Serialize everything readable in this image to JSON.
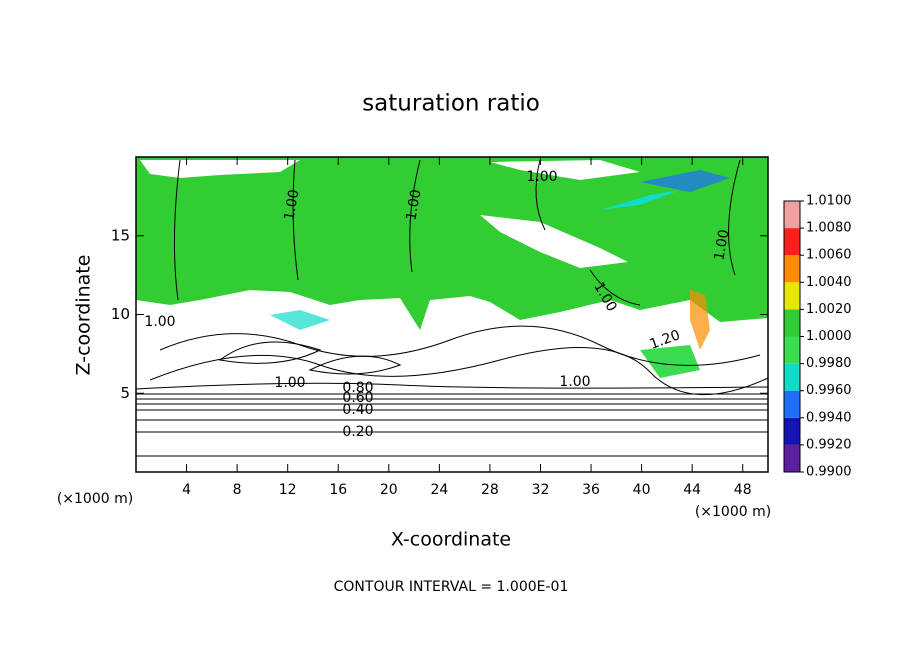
{
  "chart_data": {
    "type": "contour",
    "title": "saturation ratio",
    "x_label": "X-coordinate",
    "y_label": "Z-coordinate",
    "x_unit": "(×1000 m)",
    "footer": "CONTOUR INTERVAL = 1.000E-01",
    "xlim": [
      0,
      50
    ],
    "xticks": [
      4,
      8,
      12,
      16,
      20,
      24,
      28,
      32,
      36,
      40,
      44,
      48
    ],
    "ylim": [
      0,
      20
    ],
    "yticks": [
      5,
      10,
      15
    ],
    "colorbar": {
      "ticks": [
        {
          "value": 0.99,
          "label": "0.9900"
        },
        {
          "value": 0.992,
          "label": "0.9920"
        },
        {
          "value": 0.994,
          "label": "0.9940"
        },
        {
          "value": 0.996,
          "label": "0.9960"
        },
        {
          "value": 0.998,
          "label": "0.9980"
        },
        {
          "value": 1.0,
          "label": "1.0000"
        },
        {
          "value": 1.002,
          "label": "1.0020"
        },
        {
          "value": 1.004,
          "label": "1.0040"
        },
        {
          "value": 1.006,
          "label": "1.0060"
        },
        {
          "value": 1.008,
          "label": "1.0080"
        },
        {
          "value": 1.01,
          "label": "1.0100"
        }
      ],
      "colors": [
        "#5a1e9e",
        "#1414b4",
        "#1e6eff",
        "#10dcc8",
        "#3cdc50",
        "#32cd32",
        "#e6e600",
        "#ff8c00",
        "#ff1e1e",
        "#f0a0a0"
      ]
    },
    "contour_labels": [
      {
        "value": 1.0,
        "label": "1.00"
      },
      {
        "value": 1.0,
        "label": "1.00"
      },
      {
        "value": 1.0,
        "label": "1.00"
      },
      {
        "value": 1.0,
        "label": "1.00"
      },
      {
        "value": 1.0,
        "label": "1.00"
      },
      {
        "value": 1.0,
        "label": "1.00"
      },
      {
        "value": 1.0,
        "label": "1.00"
      },
      {
        "value": 1.0,
        "label": "1.00"
      },
      {
        "value": 1.2,
        "label": "1.20"
      },
      {
        "value": 0.8,
        "label": "0.80"
      },
      {
        "value": 0.6,
        "label": "0.60"
      },
      {
        "value": 0.4,
        "label": "0.40"
      },
      {
        "value": 0.2,
        "label": "0.20"
      }
    ]
  }
}
